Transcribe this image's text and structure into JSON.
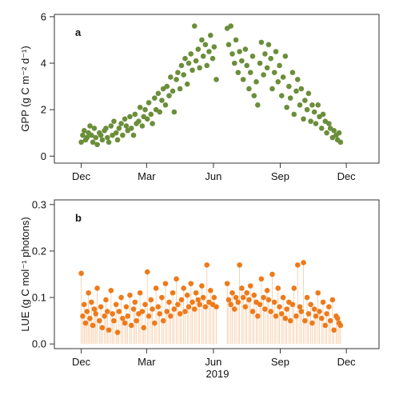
{
  "chart_data": [
    {
      "panel": "a",
      "type": "scatter",
      "ylabel": "GPP (g C m⁻² d⁻¹)",
      "xlabel": "",
      "x_tick_labels": [
        "Dec",
        "Mar",
        "Jun",
        "Sep",
        "Dec"
      ],
      "y_ticks": [
        0,
        2,
        4,
        6
      ],
      "ylim": [
        -0.3,
        6.1
      ],
      "color": "#6b8e3a",
      "grid": false,
      "gap_note": "",
      "x_date_ticks": [
        "2018-12-01",
        "2019-03-01",
        "2019-06-01",
        "2019-09-01",
        "2019-12-01"
      ],
      "xlim": [
        "2018-10-25",
        "2020-01-15"
      ],
      "series": [
        {
          "x": [
            "2018-12-01",
            "2018-12-03",
            "2018-12-05",
            "2018-12-07",
            "2018-12-09",
            "2018-12-11",
            "2018-12-13",
            "2018-12-15",
            "2018-12-17",
            "2018-12-19",
            "2018-12-21",
            "2018-12-23",
            "2018-12-26",
            "2018-12-28",
            "2018-12-30",
            "2019-01-02",
            "2019-01-04",
            "2019-01-06",
            "2019-01-08",
            "2019-01-11",
            "2019-01-13",
            "2019-01-15",
            "2019-01-18",
            "2019-01-20",
            "2019-01-22",
            "2019-01-25",
            "2019-01-27",
            "2019-01-30",
            "2019-02-01",
            "2019-02-03",
            "2019-02-06",
            "2019-02-08",
            "2019-02-11",
            "2019-02-13",
            "2019-02-15",
            "2019-02-18",
            "2019-02-20",
            "2019-02-23",
            "2019-02-25",
            "2019-02-27",
            "2019-03-02",
            "2019-03-04",
            "2019-03-07",
            "2019-03-09",
            "2019-03-12",
            "2019-03-14",
            "2019-03-17",
            "2019-03-19",
            "2019-03-22",
            "2019-03-24",
            "2019-03-27",
            "2019-03-29",
            "2019-04-01",
            "2019-04-03",
            "2019-04-06",
            "2019-04-08",
            "2019-04-11",
            "2019-04-13",
            "2019-04-16",
            "2019-04-18",
            "2019-04-21",
            "2019-04-23",
            "2019-04-26",
            "2019-04-28",
            "2019-05-01",
            "2019-05-03",
            "2019-05-06",
            "2019-05-08",
            "2019-05-11",
            "2019-05-13",
            "2019-05-16",
            "2019-05-18",
            "2019-05-21",
            "2019-05-23",
            "2019-05-26",
            "2019-05-28",
            "2019-05-31",
            "2019-06-02",
            "2019-06-05",
            "2019-06-20",
            "2019-06-22",
            "2019-06-25",
            "2019-06-27",
            "2019-06-30",
            "2019-07-02",
            "2019-07-05",
            "2019-07-07",
            "2019-07-10",
            "2019-07-12",
            "2019-07-15",
            "2019-07-17",
            "2019-07-20",
            "2019-07-22",
            "2019-07-25",
            "2019-07-27",
            "2019-07-30",
            "2019-08-01",
            "2019-08-04",
            "2019-08-06",
            "2019-08-09",
            "2019-08-11",
            "2019-08-14",
            "2019-08-16",
            "2019-08-19",
            "2019-08-21",
            "2019-08-24",
            "2019-08-26",
            "2019-08-29",
            "2019-08-31",
            "2019-09-03",
            "2019-09-05",
            "2019-09-08",
            "2019-09-10",
            "2019-09-13",
            "2019-09-15",
            "2019-09-18",
            "2019-09-20",
            "2019-09-23",
            "2019-09-25",
            "2019-09-28",
            "2019-09-30",
            "2019-10-03",
            "2019-10-05",
            "2019-10-08",
            "2019-10-10",
            "2019-10-13",
            "2019-10-15",
            "2019-10-18",
            "2019-10-20",
            "2019-10-23",
            "2019-10-25",
            "2019-10-28",
            "2019-10-30",
            "2019-11-02",
            "2019-11-04",
            "2019-11-07",
            "2019-11-09",
            "2019-11-12",
            "2019-11-14",
            "2019-11-17",
            "2019-11-19",
            "2019-11-21",
            "2019-11-23"
          ],
          "y": [
            0.6,
            0.9,
            1.1,
            0.7,
            0.8,
            1.0,
            1.3,
            0.9,
            0.6,
            1.2,
            0.8,
            0.5,
            1.0,
            0.9,
            0.7,
            1.1,
            1.2,
            0.8,
            0.6,
            1.3,
            0.9,
            1.5,
            1.0,
            0.7,
            1.2,
            1.4,
            0.9,
            1.6,
            1.3,
            1.1,
            1.7,
            1.2,
            0.9,
            1.8,
            1.4,
            1.5,
            2.1,
            1.3,
            1.7,
            2.0,
            1.6,
            2.3,
            1.8,
            1.4,
            2.5,
            2.0,
            2.7,
            1.9,
            2.4,
            2.9,
            2.2,
            3.0,
            2.6,
            3.4,
            2.8,
            1.9,
            3.3,
            3.6,
            2.9,
            3.9,
            3.5,
            4.2,
            3.1,
            4.0,
            4.4,
            3.7,
            5.6,
            4.1,
            4.6,
            3.8,
            5.0,
            4.3,
            4.8,
            3.9,
            4.5,
            5.2,
            4.2,
            4.7,
            3.3,
            5.5,
            4.8,
            5.6,
            4.4,
            4.0,
            5.0,
            3.6,
            4.5,
            4.1,
            3.3,
            4.6,
            3.9,
            2.9,
            3.6,
            4.3,
            2.6,
            3.2,
            2.2,
            4.0,
            4.9,
            3.5,
            4.4,
            3.8,
            4.8,
            4.2,
            2.9,
            3.6,
            4.5,
            3.2,
            3.9,
            2.6,
            3.4,
            4.3,
            2.1,
            3.0,
            2.5,
            3.6,
            1.8,
            2.8,
            3.3,
            2.2,
            2.9,
            1.6,
            2.4,
            2.0,
            2.7,
            1.5,
            2.2,
            1.9,
            1.4,
            2.2,
            1.7,
            1.2,
            1.8,
            1.5,
            1.0,
            1.4,
            1.2,
            0.8,
            1.1,
            0.9,
            0.7,
            1.0,
            0.6
          ]
        }
      ]
    },
    {
      "panel": "b",
      "type": "scatter",
      "ylabel": "LUE (g C mol⁻¹ photons)",
      "xlabel": "2019",
      "x_tick_labels": [
        "Dec",
        "Mar",
        "Jun",
        "Sep",
        "Dec"
      ],
      "y_ticks": [
        0.0,
        0.1,
        0.2,
        0.3
      ],
      "y_tick_labels": [
        "0.0",
        "0.1",
        "0.2",
        "0.3"
      ],
      "ylim": [
        -0.01,
        0.31
      ],
      "color": "#ee7a1a",
      "stem_color": "#f6c9a2",
      "grid": false,
      "x_date_ticks": [
        "2018-12-01",
        "2019-03-01",
        "2019-06-01",
        "2019-09-01",
        "2019-12-01"
      ],
      "xlim": [
        "2018-10-25",
        "2020-01-15"
      ],
      "series": [
        {
          "x": [
            "2018-12-01",
            "2018-12-03",
            "2018-12-05",
            "2018-12-07",
            "2018-12-09",
            "2018-12-11",
            "2018-12-13",
            "2018-12-15",
            "2018-12-17",
            "2018-12-19",
            "2018-12-21",
            "2018-12-23",
            "2018-12-26",
            "2018-12-28",
            "2018-12-30",
            "2019-01-02",
            "2019-01-04",
            "2019-01-06",
            "2019-01-08",
            "2019-01-11",
            "2019-01-13",
            "2019-01-15",
            "2019-01-18",
            "2019-01-20",
            "2019-01-22",
            "2019-01-25",
            "2019-01-27",
            "2019-01-30",
            "2019-02-01",
            "2019-02-03",
            "2019-02-06",
            "2019-02-08",
            "2019-02-11",
            "2019-02-13",
            "2019-02-15",
            "2019-02-18",
            "2019-02-20",
            "2019-02-23",
            "2019-02-25",
            "2019-02-27",
            "2019-03-02",
            "2019-03-04",
            "2019-03-07",
            "2019-03-09",
            "2019-03-12",
            "2019-03-14",
            "2019-03-17",
            "2019-03-19",
            "2019-03-22",
            "2019-03-24",
            "2019-03-27",
            "2019-03-29",
            "2019-04-01",
            "2019-04-03",
            "2019-04-06",
            "2019-04-08",
            "2019-04-11",
            "2019-04-13",
            "2019-04-16",
            "2019-04-18",
            "2019-04-21",
            "2019-04-23",
            "2019-04-26",
            "2019-04-28",
            "2019-05-01",
            "2019-05-03",
            "2019-05-06",
            "2019-05-08",
            "2019-05-11",
            "2019-05-13",
            "2019-05-16",
            "2019-05-18",
            "2019-05-21",
            "2019-05-23",
            "2019-05-26",
            "2019-05-28",
            "2019-05-31",
            "2019-06-02",
            "2019-06-05",
            "2019-06-20",
            "2019-06-22",
            "2019-06-25",
            "2019-06-27",
            "2019-06-30",
            "2019-07-02",
            "2019-07-05",
            "2019-07-07",
            "2019-07-10",
            "2019-07-12",
            "2019-07-15",
            "2019-07-17",
            "2019-07-20",
            "2019-07-22",
            "2019-07-25",
            "2019-07-27",
            "2019-07-30",
            "2019-08-01",
            "2019-08-04",
            "2019-08-06",
            "2019-08-09",
            "2019-08-11",
            "2019-08-14",
            "2019-08-16",
            "2019-08-19",
            "2019-08-21",
            "2019-08-24",
            "2019-08-26",
            "2019-08-29",
            "2019-08-31",
            "2019-09-03",
            "2019-09-05",
            "2019-09-08",
            "2019-09-10",
            "2019-09-13",
            "2019-09-15",
            "2019-09-18",
            "2019-09-20",
            "2019-09-23",
            "2019-09-25",
            "2019-09-28",
            "2019-09-30",
            "2019-10-03",
            "2019-10-05",
            "2019-10-08",
            "2019-10-10",
            "2019-10-13",
            "2019-10-15",
            "2019-10-18",
            "2019-10-20",
            "2019-10-23",
            "2019-10-25",
            "2019-10-28",
            "2019-10-30",
            "2019-11-02",
            "2019-11-04",
            "2019-11-07",
            "2019-11-09",
            "2019-11-12",
            "2019-11-14",
            "2019-11-17",
            "2019-11-19",
            "2019-11-21",
            "2019-11-23"
          ],
          "y": [
            0.152,
            0.06,
            0.085,
            0.045,
            0.07,
            0.11,
            0.055,
            0.09,
            0.04,
            0.075,
            0.065,
            0.12,
            0.05,
            0.08,
            0.035,
            0.06,
            0.095,
            0.07,
            0.03,
            0.115,
            0.065,
            0.05,
            0.085,
            0.025,
            0.07,
            0.1,
            0.055,
            0.045,
            0.08,
            0.06,
            0.105,
            0.04,
            0.075,
            0.09,
            0.05,
            0.065,
            0.11,
            0.07,
            0.035,
            0.085,
            0.155,
            0.06,
            0.095,
            0.075,
            0.045,
            0.12,
            0.08,
            0.065,
            0.1,
            0.05,
            0.13,
            0.07,
            0.09,
            0.06,
            0.11,
            0.075,
            0.14,
            0.085,
            0.065,
            0.095,
            0.12,
            0.07,
            0.105,
            0.08,
            0.13,
            0.09,
            0.075,
            0.11,
            0.095,
            0.085,
            0.125,
            0.1,
            0.08,
            0.17,
            0.09,
            0.115,
            0.085,
            0.1,
            0.08,
            0.13,
            0.095,
            0.085,
            0.11,
            0.075,
            0.1,
            0.09,
            0.17,
            0.12,
            0.1,
            0.08,
            0.11,
            0.095,
            0.125,
            0.07,
            0.105,
            0.09,
            0.06,
            0.085,
            0.14,
            0.1,
            0.075,
            0.115,
            0.095,
            0.07,
            0.15,
            0.09,
            0.06,
            0.12,
            0.08,
            0.065,
            0.1,
            0.055,
            0.075,
            0.09,
            0.05,
            0.085,
            0.12,
            0.06,
            0.17,
            0.08,
            0.07,
            0.175,
            0.05,
            0.1,
            0.065,
            0.085,
            0.045,
            0.075,
            0.06,
            0.11,
            0.07,
            0.055,
            0.09,
            0.04,
            0.065,
            0.08,
            0.05,
            0.095,
            0.03,
            0.06,
            0.055,
            0.045,
            0.04
          ]
        }
      ]
    }
  ]
}
